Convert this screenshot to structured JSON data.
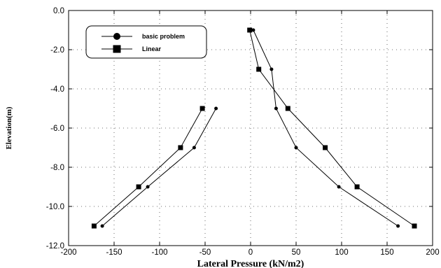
{
  "chart_data": {
    "type": "line",
    "title": "",
    "xlabel": "Lateral Pressure (kN/m2)",
    "ylabel": "Elevation(m)",
    "xlim": [
      -200,
      200
    ],
    "ylim": [
      -12,
      0
    ],
    "x_ticks": [
      -200,
      -150,
      -100,
      -50,
      0,
      50,
      100,
      150,
      200
    ],
    "x_tick_labels": [
      "-200",
      "-150",
      "-100",
      "-50",
      "0",
      "50",
      "100",
      "150",
      "200"
    ],
    "y_ticks": [
      0,
      -2,
      -4,
      -6,
      -8,
      -10,
      -12
    ],
    "y_tick_labels": [
      "0.0",
      "-2.0",
      "-4.0",
      "-6.0",
      "-8.0",
      "-10.0",
      "-12.0"
    ],
    "grid": true,
    "legend_position": "top-left",
    "series": [
      {
        "name": "basic problem",
        "marker": "circle",
        "color": "#000000",
        "segments": [
          [
            [
              -38,
              -5
            ],
            [
              -62,
              -7
            ],
            [
              -113,
              -9
            ],
            [
              -163,
              -11
            ]
          ],
          [
            [
              3,
              -1
            ],
            [
              23,
              -3
            ],
            [
              28,
              -5
            ],
            [
              50,
              -7
            ],
            [
              97,
              -9
            ],
            [
              162,
              -11
            ]
          ]
        ]
      },
      {
        "name": "Linear",
        "marker": "square",
        "color": "#000000",
        "segments": [
          [
            [
              -53,
              -5
            ],
            [
              -77,
              -7
            ],
            [
              -123,
              -9
            ],
            [
              -172,
              -11
            ]
          ],
          [
            [
              -1,
              -1
            ],
            [
              9,
              -3
            ],
            [
              41,
              -5
            ],
            [
              82,
              -7
            ],
            [
              117,
              -9
            ],
            [
              180,
              -11
            ]
          ]
        ]
      }
    ]
  }
}
